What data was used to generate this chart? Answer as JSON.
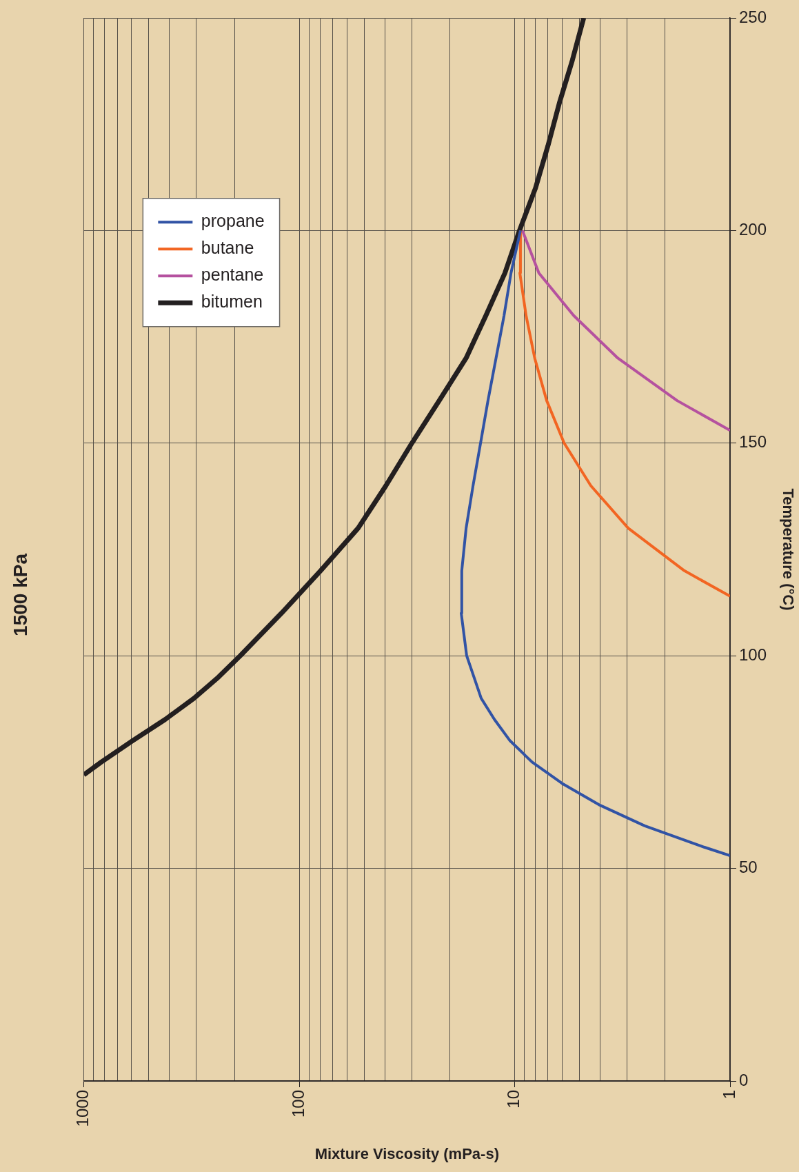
{
  "chart_data": {
    "type": "line",
    "title": "1500 kPa",
    "xlabel": "Mixture Viscosity (mPa-s)",
    "ylabel": "Temperature (°C)",
    "log": "x",
    "xlim": [
      1000,
      1
    ],
    "xticks": [
      1000,
      {
        "value": 900,
        "label": null
      },
      {
        "value": 800,
        "label": null
      },
      {
        "value": 700,
        "label": null
      },
      {
        "value": 600,
        "label": null
      },
      {
        "value": 500,
        "label": null
      },
      {
        "value": 400,
        "label": null
      },
      {
        "value": 300,
        "label": null
      },
      {
        "value": 200,
        "label": null
      },
      100,
      {
        "value": 90,
        "label": null
      },
      {
        "value": 80,
        "label": null
      },
      {
        "value": 70,
        "label": null
      },
      {
        "value": 60,
        "label": null
      },
      {
        "value": 50,
        "label": null
      },
      {
        "value": 40,
        "label": null
      },
      {
        "value": 30,
        "label": null
      },
      {
        "value": 20,
        "label": null
      },
      10,
      {
        "value": 9,
        "label": null
      },
      {
        "value": 8,
        "label": null
      },
      {
        "value": 7,
        "label": null
      },
      {
        "value": 6,
        "label": null
      },
      {
        "value": 5,
        "label": null
      },
      {
        "value": 4,
        "label": null
      },
      {
        "value": 3,
        "label": null
      },
      {
        "value": 2,
        "label": null
      },
      1
    ],
    "ylim": [
      0,
      250
    ],
    "yticks": [
      0,
      50,
      100,
      150,
      200,
      250
    ],
    "grid": true,
    "legend": "top left",
    "marker": "none",
    "line_style": "solid",
    "series": [
      {
        "name": "propane",
        "color": "#3153a5",
        "x": [
          1,
          1.32,
          2.49,
          4.07,
          6.03,
          8.3,
          10.5,
          12.4,
          14.3,
          16.7,
          17.7,
          17.6,
          16.8,
          15.6,
          14.4,
          13.3,
          12.2,
          11.2,
          10.4,
          9.4
        ],
        "values": [
          53,
          55,
          60,
          65,
          70,
          75,
          80,
          85,
          90,
          100,
          110,
          120,
          130,
          140,
          150,
          160,
          170,
          180,
          190,
          200
        ]
      },
      {
        "name": "butane",
        "color": "#f26522",
        "x": [
          1,
          1.63,
          2.97,
          4.43,
          5.89,
          7.1,
          8.07,
          8.85,
          9.46,
          9.4
        ],
        "values": [
          114,
          120,
          130,
          140,
          150,
          160,
          170,
          180,
          190,
          200
        ]
      },
      {
        "name": "pentane",
        "color": "#b5519f",
        "x": [
          1,
          1.76,
          3.32,
          5.32,
          7.72,
          9.2
        ],
        "values": [
          153,
          160,
          170,
          180,
          190,
          200
        ]
      },
      {
        "name": "bitumen",
        "color": "#231f20",
        "x": [
          1000,
          830,
          595,
          420,
          308,
          237,
          188,
          121,
          79.6,
          53.3,
          39.6,
          30,
          22.4,
          16.8,
          13.6,
          11.1,
          9.5,
          8,
          7,
          6.2,
          5.4,
          4.78
        ],
        "values": [
          72,
          75,
          80,
          85,
          90,
          95,
          100,
          110,
          120,
          130,
          140,
          150,
          160,
          170,
          180,
          190,
          200,
          210,
          220,
          230,
          240,
          250
        ]
      }
    ]
  }
}
